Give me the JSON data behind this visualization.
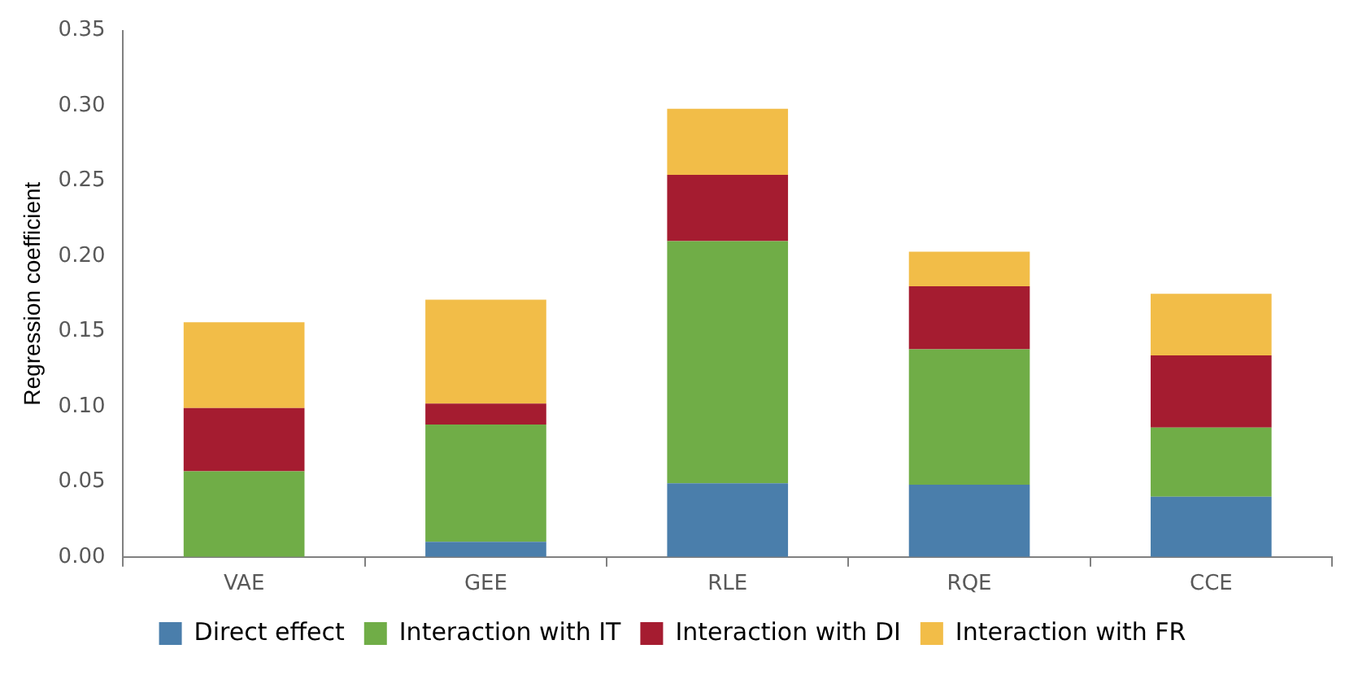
{
  "chart_data": {
    "type": "bar",
    "stacked": true,
    "ylabel": "Regression coefficient",
    "categories": [
      "VAE",
      "GEE",
      "RLE",
      "RQE",
      "CCE"
    ],
    "series": [
      {
        "name": "Direct effect",
        "color": "#4a7eab",
        "values": [
          0,
          0.01,
          0.049,
          0.048,
          0.04
        ]
      },
      {
        "name": "Interaction with IT",
        "color": "#70ad47",
        "values": [
          0.057,
          0.078,
          0.161,
          0.09,
          0.046
        ]
      },
      {
        "name": "Interaction with DI",
        "color": "#a51c30",
        "values": [
          0.042,
          0.014,
          0.044,
          0.042,
          0.048
        ]
      },
      {
        "name": "Interaction with FR",
        "color": "#f2bd48",
        "values": [
          0.057,
          0.069,
          0.044,
          0.023,
          0.041
        ]
      }
    ],
    "ylim": [
      0,
      0.35
    ],
    "yticks": [
      {
        "value": 0,
        "label": "0.00"
      },
      {
        "value": 0.05,
        "label": "0.05"
      },
      {
        "value": 0.1,
        "label": "0.10"
      },
      {
        "value": 0.15,
        "label": "0.15"
      },
      {
        "value": 0.2,
        "label": "0.20"
      },
      {
        "value": 0.25,
        "label": "0.25"
      },
      {
        "value": 0.3,
        "label": "0.30"
      },
      {
        "value": 0.35,
        "label": "0.35"
      }
    ],
    "grid": false,
    "legend": "bottom"
  }
}
